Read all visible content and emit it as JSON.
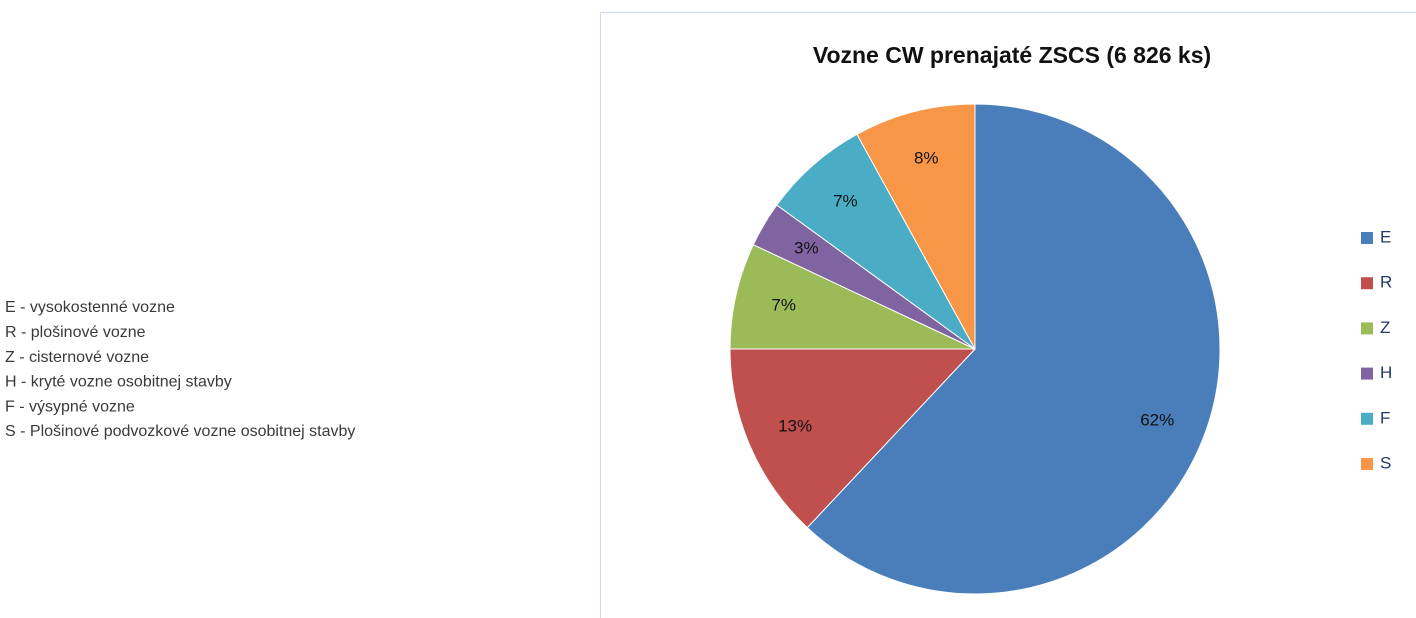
{
  "key": [
    "E - vysokostenné vozne",
    "R - plošinové vozne",
    "Z - cisternové vozne",
    "H - kryté vozne osobitnej stavby",
    "F - výsypné vozne",
    "S - Plošinové podvozkové vozne osobitnej stavby"
  ],
  "chart_data": {
    "type": "pie",
    "title": "Vozne CW prenajaté ZSCS (6 826 ks)",
    "categories": [
      "E",
      "R",
      "Z",
      "H",
      "F",
      "S"
    ],
    "values": [
      62,
      13,
      7,
      3,
      7,
      8
    ],
    "value_labels": [
      "62%",
      "13%",
      "7%",
      "3%",
      "7%",
      "8%"
    ],
    "colors": [
      "#4a7ebb",
      "#c0504d",
      "#9bbb59",
      "#8064a2",
      "#4bacc6",
      "#f79646"
    ],
    "legend": "right"
  }
}
